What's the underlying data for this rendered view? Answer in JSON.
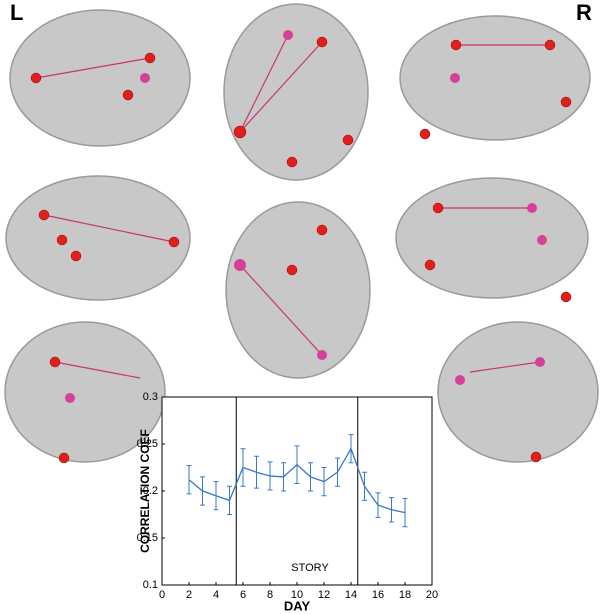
{
  "labels": {
    "left": "L",
    "right": "R"
  },
  "chart_data": {
    "type": "line",
    "xlabel": "DAY",
    "ylabel": "CORRELATION COEF",
    "annotation": "STORY",
    "markers": [
      5.5,
      14.5
    ],
    "x": [
      2,
      3,
      4,
      5,
      6,
      7,
      8,
      9,
      10,
      11,
      12,
      13,
      14,
      15,
      16,
      17,
      18
    ],
    "series": [
      {
        "color": "#3a78c9",
        "values": [
          0.212,
          0.2,
          0.195,
          0.19,
          0.225,
          0.22,
          0.216,
          0.215,
          0.228,
          0.215,
          0.21,
          0.22,
          0.245,
          0.205,
          0.185,
          0.18,
          0.177
        ],
        "errors": [
          0.015,
          0.015,
          0.015,
          0.015,
          0.02,
          0.017,
          0.015,
          0.015,
          0.02,
          0.015,
          0.015,
          0.015,
          0.015,
          0.015,
          0.013,
          0.013,
          0.015
        ]
      }
    ],
    "xlim": [
      0,
      20
    ],
    "xticks": [
      0,
      2,
      4,
      6,
      8,
      10,
      12,
      14,
      16,
      18,
      20
    ],
    "ylim": [
      0.1,
      0.3
    ],
    "yticks": [
      0.1,
      0.15,
      0.2,
      0.25,
      0.3
    ]
  }
}
